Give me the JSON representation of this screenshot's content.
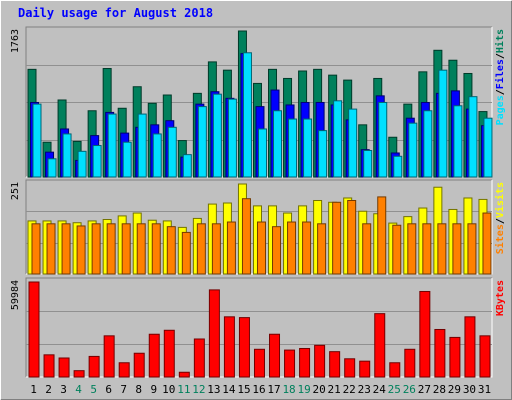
{
  "chart_data": {
    "type": "bar",
    "title": "Daily usage for August 2018",
    "categories": [
      "1",
      "2",
      "3",
      "4",
      "5",
      "6",
      "7",
      "8",
      "9",
      "10",
      "11",
      "12",
      "13",
      "14",
      "15",
      "16",
      "17",
      "18",
      "19",
      "20",
      "21",
      "22",
      "23",
      "24",
      "25",
      "26",
      "27",
      "28",
      "29",
      "30",
      "31"
    ],
    "weekend_days": [
      "4",
      "5",
      "11",
      "12",
      "18",
      "19",
      "25",
      "26"
    ],
    "panels": [
      {
        "id": "hits-files-pages",
        "ymax_label": "1763",
        "ymax": 1763,
        "right_labels": [
          "Pages",
          "/",
          "Files",
          "/",
          "Hits"
        ],
        "series": [
          {
            "name": "Hits",
            "color": "#00805c",
            "values": [
              1300,
              420,
              930,
              430,
              800,
              1310,
              830,
              1090,
              890,
              990,
              440,
              1010,
              1390,
              1290,
              1763,
              1130,
              1300,
              1190,
              1280,
              1300,
              1230,
              1170,
              630,
              1190,
              480,
              880,
              1270,
              1530,
              1410,
              1250,
              790
            ]
          },
          {
            "name": "Files",
            "color": "#0000ff",
            "values": [
              900,
              300,
              580,
              200,
              500,
              780,
              530,
              600,
              630,
              680,
              240,
              880,
              1030,
              950,
              1490,
              850,
              1050,
              870,
              900,
              900,
              870,
              690,
              330,
              980,
              290,
              710,
              900,
              1010,
              1040,
              820,
              620
            ]
          },
          {
            "name": "Pages",
            "color": "#00e0ff",
            "values": [
              880,
              220,
              520,
              310,
              380,
              760,
              420,
              760,
              520,
              600,
              270,
              850,
              1000,
              940,
              1500,
              580,
              800,
              700,
              700,
              560,
              920,
              820,
              320,
              900,
              250,
              650,
              800,
              1290,
              860,
              970,
              710
            ]
          }
        ]
      },
      {
        "id": "visits-sites",
        "ymax_label": "251",
        "ymax": 251,
        "right_labels": [
          "Sites",
          "/",
          "Visits"
        ],
        "series": [
          {
            "name": "Visits",
            "color": "#ffff00",
            "values": [
              148,
              148,
              148,
              143,
              148,
              152,
              162,
              170,
              150,
              148,
              130,
              155,
              195,
              198,
              251,
              190,
              190,
              170,
              190,
              205,
              200,
              212,
              175,
              168,
              142,
              160,
              184,
              242,
              180,
              212,
              208
            ]
          },
          {
            "name": "Sites",
            "color": "#ff8000",
            "values": [
              140,
              140,
              140,
              134,
              140,
              140,
              140,
              140,
              140,
              132,
              116,
              140,
              140,
              145,
              210,
              145,
              132,
              145,
              145,
              140,
              200,
              205,
              140,
              215,
              136,
              140,
              140,
              140,
              140,
              140,
              170
            ]
          }
        ]
      },
      {
        "id": "kbytes",
        "ymax_label": "59984",
        "ymax": 59984,
        "right_labels": [
          "KBytes"
        ],
        "series": [
          {
            "name": "KBytes",
            "color": "#ff0000",
            "values": [
              59984,
              14000,
              12000,
              4000,
              13000,
              26000,
              9000,
              15000,
              27000,
              29500,
              3000,
              24000,
              55000,
              38000,
              37500,
              17500,
              27000,
              17000,
              18000,
              20000,
              16000,
              11500,
              10000,
              40000,
              9000,
              17500,
              54000,
              30000,
              25000,
              38000,
              26000
            ]
          }
        ]
      }
    ],
    "grid": true
  }
}
